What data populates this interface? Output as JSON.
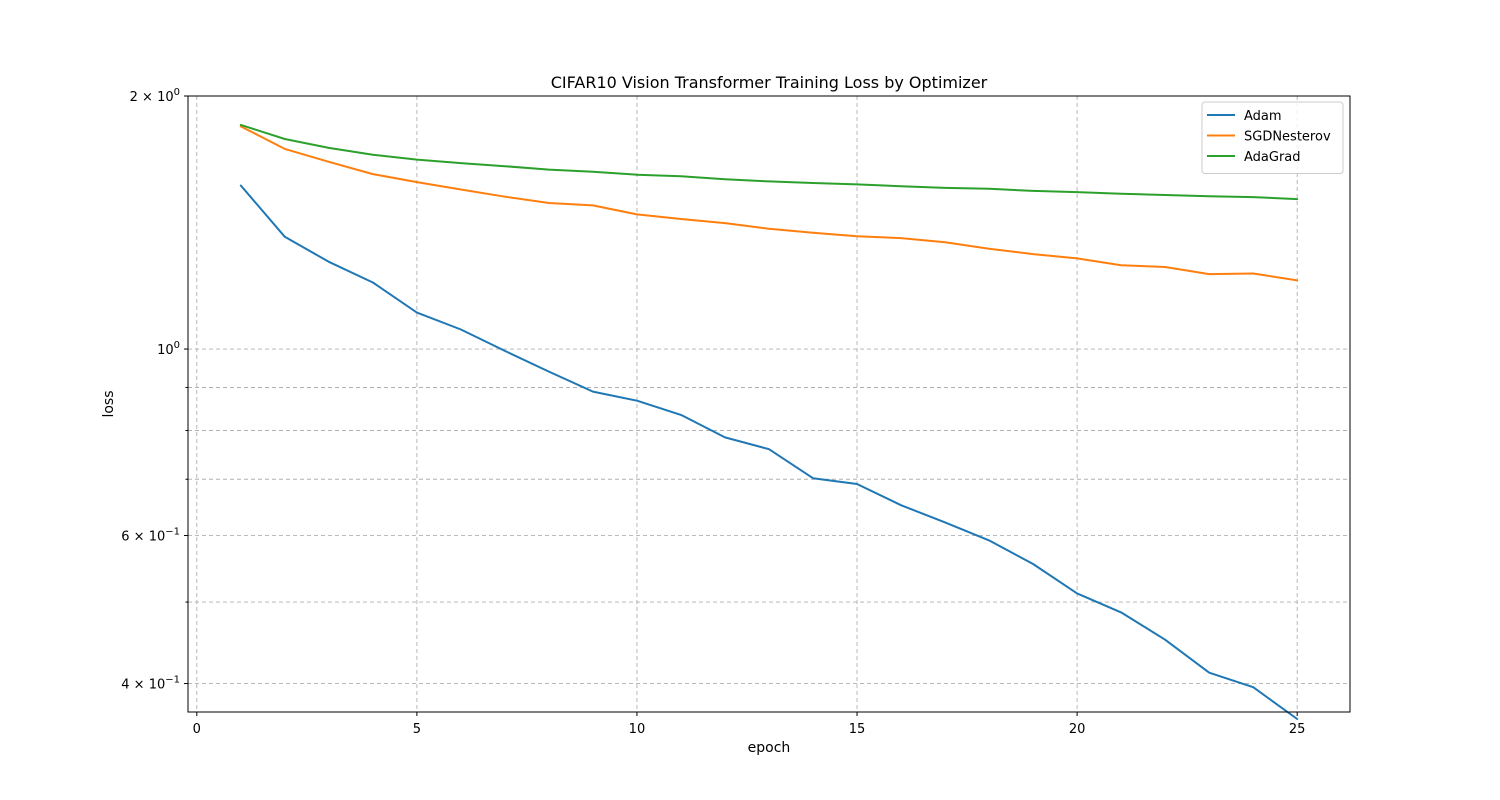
{
  "chart_data": {
    "type": "line",
    "title": "CIFAR10 Vision Transformer Training Loss by Optimizer",
    "xlabel": "epoch",
    "ylabel": "loss",
    "yscale": "log",
    "xlim": [
      -0.2,
      26.2
    ],
    "ylim": [
      0.37,
      2.0
    ],
    "xticks": [
      0,
      5,
      10,
      15,
      20,
      25
    ],
    "xtick_labels": [
      "0",
      "5",
      "10",
      "15",
      "20",
      "25"
    ],
    "yticks_major": [
      {
        "value": 2.0,
        "base": "2 × 10",
        "exp": "0"
      },
      {
        "value": 1.0,
        "base": "10",
        "exp": "0"
      },
      {
        "value": 0.6,
        "base": "6 × 10",
        "exp": "−1"
      },
      {
        "value": 0.4,
        "base": "4 × 10",
        "exp": "−1"
      }
    ],
    "ygrid_minor": [
      0.9,
      0.8,
      0.7,
      0.5
    ],
    "grid": true,
    "legend_position": "top-right",
    "x": [
      1,
      2,
      3,
      4,
      5,
      6,
      7,
      8,
      9,
      10,
      11,
      12,
      13,
      14,
      15,
      16,
      17,
      18,
      19,
      20,
      21,
      22,
      23,
      24,
      25
    ],
    "series": [
      {
        "name": "Adam",
        "color": "#1f77b4",
        "values": [
          1.565,
          1.36,
          1.27,
          1.2,
          1.105,
          1.055,
          0.995,
          0.94,
          0.89,
          0.868,
          0.835,
          0.785,
          0.76,
          0.702,
          0.691,
          0.652,
          0.622,
          0.592,
          0.555,
          0.512,
          0.486,
          0.451,
          0.412,
          0.396,
          0.363
        ]
      },
      {
        "name": "SGDNesterov",
        "color": "#ff7f0e",
        "values": [
          1.84,
          1.73,
          1.67,
          1.615,
          1.58,
          1.548,
          1.518,
          1.492,
          1.482,
          1.446,
          1.428,
          1.412,
          1.39,
          1.375,
          1.362,
          1.355,
          1.34,
          1.316,
          1.297,
          1.282,
          1.258,
          1.252,
          1.228,
          1.23,
          1.207
        ]
      },
      {
        "name": "AdaGrad",
        "color": "#2ca02c",
        "values": [
          1.848,
          1.778,
          1.735,
          1.703,
          1.68,
          1.664,
          1.65,
          1.635,
          1.625,
          1.612,
          1.605,
          1.592,
          1.583,
          1.576,
          1.57,
          1.562,
          1.555,
          1.551,
          1.542,
          1.537,
          1.53,
          1.525,
          1.52,
          1.516,
          1.508
        ]
      }
    ]
  }
}
